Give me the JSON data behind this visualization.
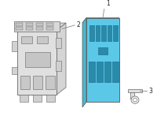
{
  "bg_color": "#ffffff",
  "p1_fill": "#5bc8e8",
  "p1_dark": "#3aabbf",
  "p1_side": "#48b8d0",
  "p1_top": "#7ad8ef",
  "p1_edge": "#555555",
  "p1_slot_fill": "#2a8aaa",
  "p1_slot_edge": "#1a6a88",
  "p2_fill": "#e0e0e0",
  "p2_dark": "#c8c8c8",
  "p2_edge": "#666666",
  "p2_detail": "#d0d0d0",
  "p3_fill": "#e0e0e0",
  "p3_edge": "#666666",
  "label_color": "#222222",
  "line_color": "#888888",
  "label1": "1",
  "label2": "2",
  "label3": "3"
}
